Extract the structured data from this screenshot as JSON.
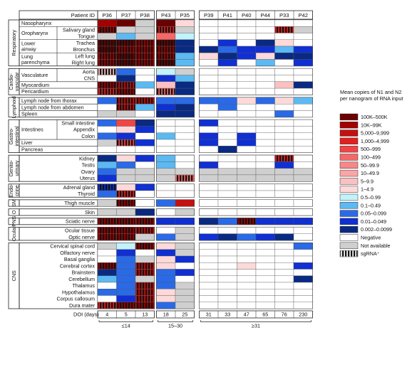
{
  "chart_data": {
    "type": "heatmap",
    "patient_header": "Patient ID",
    "patients": [
      "P36",
      "P37",
      "P38",
      "P43",
      "P35",
      "P39",
      "P41",
      "P40",
      "P44",
      "P33",
      "P42"
    ],
    "doi_label": "DOI (days)",
    "doi": [
      "4",
      "5",
      "13",
      "18",
      "25",
      "31",
      "33",
      "47",
      "65",
      "76",
      "230"
    ],
    "doi_groups": [
      {
        "label": "≤14",
        "members": 3
      },
      {
        "label": "15–30",
        "members": 2
      },
      {
        "label": "≥31",
        "members": 6
      }
    ],
    "systems": [
      {
        "label": [
          "Respiratory"
        ],
        "groups": [
          {
            "name": "",
            "rows": [
              "Nasopharynx"
            ]
          },
          {
            "name": "Oropharynx",
            "rows": [
              "Salivary gland",
              "Tongue"
            ]
          },
          {
            "name": "Lower airway",
            "rows": [
              "Trachea",
              "Bronchus"
            ]
          },
          {
            "name": "Lung parenchyma",
            "rows": [
              "Left lung",
              "Right lung"
            ]
          }
        ]
      },
      {
        "label": [
          "Cardio-",
          "vascular"
        ],
        "groups": [
          {
            "name": "Vasculature",
            "rows": [
              "Aorta",
              "CNS"
            ]
          },
          {
            "name": "",
            "rows": [
              "Myocardium"
            ]
          },
          {
            "name": "",
            "rows": [
              "Pericardium"
            ]
          }
        ]
      },
      {
        "label": [
          "Lymphoid"
        ],
        "groups": [
          {
            "name": "",
            "rows": [
              "Lymph node from thorax"
            ]
          },
          {
            "name": "",
            "rows": [
              "Lymph node from abdomen"
            ]
          },
          {
            "name": "",
            "rows": [
              "Spleen"
            ]
          }
        ]
      },
      {
        "label": [
          "Gastro-",
          "intestinal"
        ],
        "groups": [
          {
            "name": "Intestines",
            "rows": [
              "Small intestine",
              "Appendix",
              "Colon"
            ]
          },
          {
            "name": "",
            "rows": [
              "Liver"
            ]
          },
          {
            "name": "",
            "rows": [
              "Pancreas"
            ]
          }
        ]
      },
      {
        "label": [
          "Genito-",
          "urinary"
        ],
        "groups": [
          {
            "name": "",
            "rows": [
              "Kidney",
              "Testis",
              "Ovary",
              "Uterus"
            ]
          }
        ]
      },
      {
        "label": [
          "Endo-",
          "crine"
        ],
        "groups": [
          {
            "name": "",
            "rows": [
              "Adrenal gland",
              "Thyroid"
            ]
          }
        ]
      },
      {
        "label": [
          "SM"
        ],
        "groups": [
          {
            "name": "",
            "rows": [
              "Thigh muscle"
            ]
          }
        ]
      },
      {
        "label": [
          "O"
        ],
        "groups": [
          {
            "name": "",
            "rows": [
              "Skin"
            ]
          }
        ]
      },
      {
        "label": [
          "PNS"
        ],
        "groups": [
          {
            "name": "",
            "rows": [
              "Sciatic nerve"
            ]
          }
        ]
      },
      {
        "label": [
          "Ocular"
        ],
        "groups": [
          {
            "name": "",
            "rows": [
              "Ocular tissue",
              "Optic nerve"
            ]
          }
        ]
      },
      {
        "label": [
          "CNS"
        ],
        "groups": [
          {
            "name": "",
            "rows": [
              "Cervical spinal cord",
              "Olfactory nerve",
              "Basal ganglia",
              "Cerebral cortex",
              "Brainstem",
              "Cerebellum",
              "Thalamus",
              "Hypothalamus",
              "Corpus callosum",
              "Dura mater"
            ]
          }
        ]
      }
    ],
    "legend": {
      "title": [
        "Mean copies of N1 and N2",
        "per nanogram of RNA input"
      ],
      "levels": [
        {
          "label": "100K–500K",
          "color": "#6b0000"
        },
        {
          "label": "10K–99K",
          "color": "#a30000"
        },
        {
          "label": "5,000–9,999",
          "color": "#c41010"
        },
        {
          "label": "1,000–4,999",
          "color": "#e32020"
        },
        {
          "label": "500–999",
          "color": "#f04545"
        },
        {
          "label": "100–499",
          "color": "#f46868"
        },
        {
          "label": "50–99.9",
          "color": "#f78888"
        },
        {
          "label": "10–49.9",
          "color": "#f9a6a6"
        },
        {
          "label": "5–9.9",
          "color": "#fbc0c0"
        },
        {
          "label": "1–4.9",
          "color": "#fdd9d9"
        },
        {
          "label": "0.5–0.99",
          "color": "#c3f2fb"
        },
        {
          "label": "0.1–0.49",
          "color": "#5cb9f2"
        },
        {
          "label": "0.05–0.099",
          "color": "#2a6ae6"
        },
        {
          "label": "0.01–0.049",
          "color": "#1030d2"
        },
        {
          "label": "0.002–0.0099",
          "color": "#0a2a82"
        },
        {
          "label": "Negative",
          "color": "#ffffff"
        },
        {
          "label": "Not available",
          "color": "#cfcfcf"
        },
        {
          "label": "sgRNA⁺",
          "color": "striped"
        }
      ]
    },
    "cells": {
      "Nasopharynx": [
        "1",
        "0",
        "16",
        "0",
        "9",
        "15",
        "15",
        "15",
        "15",
        "15",
        "15"
      ],
      "Salivary gland": [
        "S1",
        "16",
        "16",
        "S3",
        "16",
        "15",
        "15",
        "15",
        "15",
        "S3",
        "16"
      ],
      "Tongue": [
        "16",
        "11",
        "16",
        "5",
        "10",
        "15",
        "15",
        "15",
        "15",
        "15",
        "15"
      ],
      "Trachea": [
        "S0",
        "S0",
        "S1",
        "S0",
        "14",
        "15",
        "13",
        "15",
        "14",
        "9",
        "15"
      ],
      "Bronchus": [
        "S0",
        "S1",
        "S1",
        "S1",
        "14",
        "14",
        "12",
        "13",
        "13",
        "11",
        "13"
      ],
      "Left lung": [
        "S1",
        "S0",
        "S1",
        "S1",
        "11",
        "9",
        "14",
        "13",
        "9",
        "14",
        "14"
      ],
      "Right lung": [
        "S1",
        "S0",
        "S1",
        "S0",
        "11",
        "15",
        "13",
        "15",
        "11",
        "15",
        "13"
      ],
      "Aorta": [
        "S8",
        "12",
        "15",
        "10",
        "16",
        "15",
        "15",
        "15",
        "15",
        "15",
        "15"
      ],
      "CNS": [
        "15",
        "14",
        "15",
        "13",
        "11",
        "15",
        "15",
        "15",
        "15",
        "15",
        "15"
      ],
      "Myocardium": [
        "S1",
        "S2",
        "11",
        "8",
        "14",
        "15",
        "15",
        "15",
        "15",
        "8",
        "14"
      ],
      "Pericardium": [
        "S3",
        "S1",
        "15",
        "S5",
        "14",
        "15",
        "15",
        "15",
        "15",
        "15",
        "15"
      ],
      "Lymph node from thorax": [
        "12",
        "S2",
        "S2",
        "12",
        "12",
        "12",
        "12",
        "9",
        "12",
        "9",
        "11"
      ],
      "Lymph node from abdomen": [
        "15",
        "S2",
        "11",
        "13",
        "14",
        "15",
        "12",
        "15",
        "15",
        "15",
        "15"
      ],
      "Spleen": [
        "16",
        "16",
        "15",
        "14",
        "14",
        "15",
        "15",
        "15",
        "15",
        "12",
        "15"
      ],
      "Small intestine": [
        "12",
        "4",
        "14",
        "15",
        "15",
        "13",
        "15",
        "15",
        "15",
        "15",
        "15"
      ],
      "Appendix": [
        "15",
        "9",
        "13",
        "15",
        "15",
        "15",
        "15",
        "15",
        "15",
        "15",
        "15"
      ],
      "Colon": [
        "12",
        "13",
        "15",
        "11",
        "15",
        "13",
        "15",
        "13",
        "15",
        "15",
        "15"
      ],
      "Liver": [
        "16",
        "S4",
        "13",
        "15",
        "15",
        "13",
        "15",
        "13",
        "15",
        "15",
        "15"
      ],
      "Pancreas": [
        "15",
        "15",
        "15",
        "15",
        "15",
        "15",
        "14",
        "15",
        "15",
        "15",
        "15"
      ],
      "Kidney": [
        "14",
        "9",
        "13",
        "11",
        "15",
        "15",
        "15",
        "15",
        "15",
        "S3",
        "15"
      ],
      "Testis": [
        "11",
        "12",
        "15",
        "11",
        "15",
        "13",
        "15",
        "15",
        "15",
        "13",
        "15"
      ],
      "Ovary": [
        "12",
        "16",
        "16",
        "16",
        "16",
        "16",
        "16",
        "16",
        "16",
        "16",
        "16"
      ],
      "Uterus": [
        "13",
        "16",
        "16",
        "16",
        "S5",
        "16",
        "16",
        "16",
        "16",
        "16",
        "16"
      ],
      "Adrenal gland": [
        "S13",
        "9",
        "13",
        "15",
        "15",
        "15",
        "15",
        "15",
        "15",
        "15",
        "15"
      ],
      "Thyroid": [
        "12",
        "S3",
        "15",
        "15",
        "15",
        "15",
        "15",
        "15",
        "15",
        "15",
        "15"
      ],
      "Thigh muscle": [
        "16",
        "S1",
        "15",
        "12",
        "2",
        "15",
        "15",
        "15",
        "15",
        "15",
        "15"
      ],
      "Skin": [
        "16",
        "16",
        "14",
        "15",
        "16",
        "15",
        "15",
        "15",
        "15",
        "15",
        "15"
      ],
      "Sciatic nerve": [
        "S1",
        "S1",
        "S1",
        "13",
        "13",
        "14",
        "12",
        "S1",
        "13",
        "13",
        "13"
      ],
      "Ocular tissue": [
        "S1",
        "S1",
        "S2",
        "15",
        "16",
        "15",
        "15",
        "15",
        "15",
        "15",
        "15"
      ],
      "Optic nerve": [
        "S1",
        "S1",
        "16",
        "12",
        "16",
        "13",
        "14",
        "12",
        "13",
        "14",
        "15"
      ],
      "Cervical spinal cord": [
        "16",
        "10",
        "S1",
        "9",
        "16",
        "15",
        "15",
        "15",
        "15",
        "15",
        "12"
      ],
      "Olfactory nerve": [
        "15",
        "13",
        "15",
        "13",
        "16",
        "15",
        "15",
        "15",
        "15",
        "15",
        "15"
      ],
      "Basal ganglia": [
        "15",
        "12",
        "16",
        "9",
        "13",
        "15",
        "15",
        "15",
        "15",
        "15",
        "15"
      ],
      "Cerebral cortex": [
        "S1",
        "12",
        "S2",
        "9",
        "15",
        "15",
        "15",
        "9",
        "15",
        "15",
        "13"
      ],
      "Brainstem": [
        "14",
        "12",
        "S2",
        "12",
        "13",
        "15",
        "15",
        "15",
        "15",
        "15",
        "15"
      ],
      "Cerebellum": [
        "11",
        "12",
        "16",
        "12",
        "15",
        "15",
        "15",
        "15",
        "15",
        "15",
        "14"
      ],
      "Thalamus": [
        "15",
        "12",
        "S2",
        "12",
        "16",
        "15",
        "15",
        "15",
        "15",
        "15",
        "15"
      ],
      "Hypothalamus": [
        "12",
        "12",
        "S2",
        "9",
        "16",
        "15",
        "15",
        "15",
        "15",
        "15",
        "15"
      ],
      "Corpus callosum": [
        "15",
        "13",
        "S2",
        "9",
        "16",
        "15",
        "15",
        "15",
        "15",
        "15",
        "15"
      ],
      "Dura mater": [
        "S3",
        "S1",
        "S1",
        "12",
        "16",
        "15",
        "15",
        "15",
        "15",
        "15",
        "15"
      ]
    }
  }
}
